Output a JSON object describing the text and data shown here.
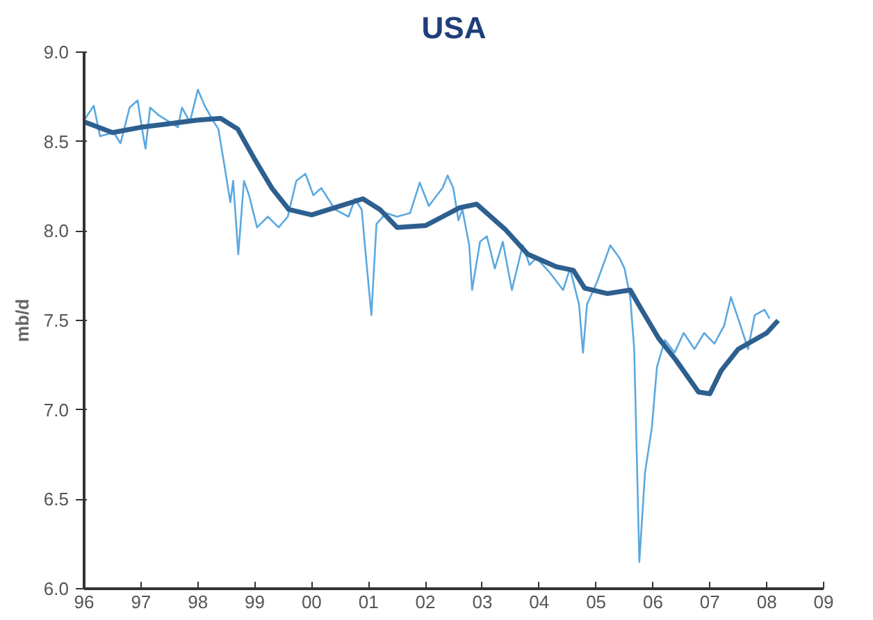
{
  "chart_data": {
    "type": "line",
    "title": "USA",
    "ylabel": "mb/d",
    "xlim": [
      1996,
      2009
    ],
    "ylim": [
      6.0,
      9.0
    ],
    "xticks": [
      {
        "value": 1996,
        "label": "96"
      },
      {
        "value": 1997,
        "label": "97"
      },
      {
        "value": 1998,
        "label": "98"
      },
      {
        "value": 1999,
        "label": "99"
      },
      {
        "value": 2000,
        "label": "00"
      },
      {
        "value": 2001,
        "label": "01"
      },
      {
        "value": 2002,
        "label": "02"
      },
      {
        "value": 2003,
        "label": "03"
      },
      {
        "value": 2004,
        "label": "04"
      },
      {
        "value": 2005,
        "label": "05"
      },
      {
        "value": 2006,
        "label": "06"
      },
      {
        "value": 2007,
        "label": "07"
      },
      {
        "value": 2008,
        "label": "08"
      },
      {
        "value": 2009,
        "label": "09"
      }
    ],
    "yticks": [
      {
        "value": 6.0,
        "label": "6.0"
      },
      {
        "value": 6.5,
        "label": "6.5"
      },
      {
        "value": 7.0,
        "label": "7.0"
      },
      {
        "value": 7.5,
        "label": "7.5"
      },
      {
        "value": 8.0,
        "label": "8.0"
      },
      {
        "value": 8.5,
        "label": "8.5"
      },
      {
        "value": 9.0,
        "label": "9.0"
      }
    ],
    "grid": false,
    "marker": "none",
    "line_style": "solid",
    "series": [
      {
        "color": "#5aa8e0",
        "x": [
          1996.0,
          1996.17,
          1996.28,
          1996.52,
          1996.64,
          1996.8,
          1996.94,
          1997.04,
          1997.08,
          1997.16,
          1997.3,
          1997.65,
          1997.72,
          1997.86,
          1998.0,
          1998.12,
          1998.28,
          1998.36,
          1998.47,
          1998.57,
          1998.62,
          1998.71,
          1998.81,
          1998.9,
          1999.04,
          1999.23,
          1999.42,
          1999.58,
          1999.73,
          1999.89,
          2000.03,
          2000.17,
          2000.41,
          2000.65,
          2000.76,
          2000.88,
          2000.95,
          2001.05,
          2001.14,
          2001.31,
          2001.5,
          2001.73,
          2001.9,
          2002.06,
          2002.3,
          2002.39,
          2002.49,
          2002.58,
          2002.65,
          2002.77,
          2002.82,
          2002.96,
          2003.08,
          2003.22,
          2003.36,
          2003.52,
          2003.71,
          2003.83,
          2003.95,
          2004.18,
          2004.42,
          2004.54,
          2004.7,
          2004.77,
          2004.84,
          2005.01,
          2005.25,
          2005.41,
          2005.5,
          2005.6,
          2005.67,
          2005.76,
          2005.86,
          2005.98,
          2006.07,
          2006.21,
          2006.38,
          2006.54,
          2006.73,
          2006.9,
          2007.08,
          2007.25,
          2007.37,
          2007.53,
          2007.67,
          2007.79,
          2007.96,
          2008.05
        ],
        "values": [
          8.62,
          8.7,
          8.53,
          8.55,
          8.49,
          8.69,
          8.73,
          8.53,
          8.46,
          8.69,
          8.65,
          8.58,
          8.69,
          8.61,
          8.79,
          8.7,
          8.61,
          8.57,
          8.36,
          8.16,
          8.28,
          7.87,
          8.28,
          8.2,
          8.02,
          8.08,
          8.02,
          8.08,
          8.28,
          8.32,
          8.2,
          8.24,
          8.12,
          8.08,
          8.18,
          8.12,
          7.87,
          7.53,
          8.04,
          8.1,
          8.08,
          8.1,
          8.27,
          8.14,
          8.24,
          8.31,
          8.24,
          8.06,
          8.12,
          7.92,
          7.67,
          7.94,
          7.97,
          7.79,
          7.94,
          7.67,
          7.92,
          7.81,
          7.85,
          7.77,
          7.67,
          7.79,
          7.59,
          7.32,
          7.59,
          7.71,
          7.92,
          7.85,
          7.79,
          7.63,
          7.34,
          6.15,
          6.65,
          6.9,
          7.24,
          7.39,
          7.32,
          7.43,
          7.34,
          7.43,
          7.37,
          7.47,
          7.63,
          7.48,
          7.34,
          7.53,
          7.56,
          7.51
        ]
      },
      {
        "color": "#2d5f8f",
        "x": [
          1996.0,
          1996.5,
          1997.0,
          1997.5,
          1998.0,
          1998.4,
          1998.7,
          1999.0,
          1999.3,
          1999.6,
          2000.0,
          2000.5,
          2000.9,
          2001.2,
          2001.5,
          2002.0,
          2002.3,
          2002.6,
          2002.9,
          2003.4,
          2003.8,
          2004.3,
          2004.6,
          2004.8,
          2005.2,
          2005.6,
          2005.8,
          2006.1,
          2006.4,
          2006.8,
          2007.0,
          2007.2,
          2007.5,
          2008.0,
          2008.2
        ],
        "values": [
          8.61,
          8.55,
          8.58,
          8.6,
          8.62,
          8.63,
          8.57,
          8.4,
          8.24,
          8.12,
          8.09,
          8.14,
          8.18,
          8.12,
          8.02,
          8.03,
          8.08,
          8.13,
          8.15,
          8.01,
          7.87,
          7.8,
          7.78,
          7.68,
          7.65,
          7.67,
          7.56,
          7.4,
          7.28,
          7.1,
          7.09,
          7.22,
          7.34,
          7.43,
          7.5
        ]
      }
    ]
  }
}
